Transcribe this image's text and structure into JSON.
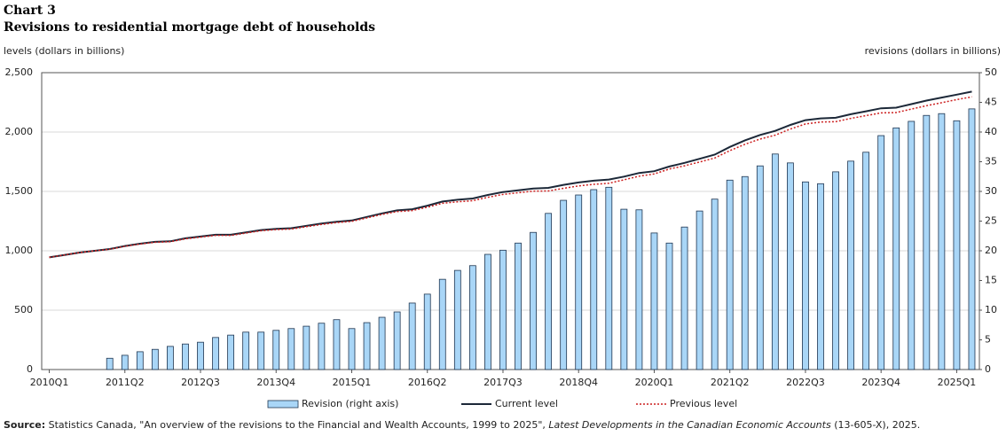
{
  "chart_data": {
    "type": "bar-line",
    "chart_label": "Chart 3",
    "title": "Revisions to residential mortgage debt of households",
    "ylabel": "levels (dollars in billions)",
    "y2label": "revisions (dollars in billions)",
    "categories": [
      "2010Q1",
      null,
      null,
      null,
      null,
      "2011Q2",
      null,
      null,
      null,
      null,
      "2012Q3",
      null,
      null,
      null,
      null,
      "2013Q4",
      null,
      null,
      null,
      null,
      "2015Q1",
      null,
      null,
      null,
      null,
      "2016Q2",
      null,
      null,
      null,
      null,
      "2017Q3",
      null,
      null,
      null,
      null,
      "2018Q4",
      null,
      null,
      null,
      null,
      "2020Q1",
      null,
      null,
      null,
      null,
      "2021Q2",
      null,
      null,
      null,
      null,
      "2022Q3",
      null,
      null,
      null,
      null,
      "2023Q4",
      null,
      null,
      null,
      null,
      "2025Q1",
      null
    ],
    "ylim": [
      0,
      2500
    ],
    "yticks": [
      0,
      500,
      {
        "value": 1000,
        "label": "1,000"
      },
      {
        "value": 1500,
        "label": "1,500"
      },
      {
        "value": 2000,
        "label": "2,000"
      },
      {
        "value": 2500,
        "label": "2,500"
      }
    ],
    "y2lim": [
      0,
      50
    ],
    "y2ticks": [
      0,
      5,
      10,
      15,
      20,
      25,
      30,
      35,
      40,
      45,
      50
    ],
    "grid": true,
    "series": [
      {
        "name": "Revision (right axis)",
        "type": "bar",
        "axis": "y2",
        "color": "#a9d6f7",
        "edge": "#1f3550",
        "values": [
          null,
          null,
          null,
          null,
          1.9,
          2.4,
          3.0,
          3.4,
          3.9,
          4.3,
          4.6,
          5.4,
          5.8,
          6.3,
          6.3,
          6.6,
          6.9,
          7.3,
          7.8,
          8.4,
          6.9,
          7.9,
          8.8,
          9.7,
          11.2,
          12.7,
          15.2,
          16.7,
          17.5,
          19.4,
          20.1,
          21.3,
          23.1,
          26.3,
          28.5,
          29.4,
          30.3,
          30.7,
          27.0,
          26.9,
          23.0,
          21.3,
          24.0,
          26.7,
          28.7,
          31.9,
          32.5,
          34.3,
          36.3,
          34.8,
          31.6,
          31.3,
          33.3,
          35.1,
          36.6,
          39.4,
          40.7,
          41.8,
          42.8,
          43.1,
          41.9,
          43.9
        ]
      },
      {
        "name": "Current level",
        "type": "line",
        "color": "#1c2838",
        "dashed": false,
        "values": [
          945,
          965,
          985,
          1000,
          1015,
          1040,
          1060,
          1075,
          1080,
          1105,
          1120,
          1135,
          1135,
          1155,
          1175,
          1185,
          1190,
          1210,
          1230,
          1245,
          1255,
          1285,
          1315,
          1340,
          1350,
          1380,
          1415,
          1430,
          1440,
          1470,
          1495,
          1510,
          1525,
          1530,
          1555,
          1575,
          1590,
          1600,
          1625,
          1655,
          1670,
          1710,
          1740,
          1775,
          1810,
          1875,
          1930,
          1975,
          2010,
          2060,
          2100,
          2115,
          2120,
          2150,
          2175,
          2200,
          2205,
          2235,
          2265,
          2290,
          2315,
          2340
        ]
      },
      {
        "name": "Previous level",
        "type": "line",
        "color": "#cc1f1f",
        "dashed": true,
        "values": [
          945,
          965,
          985,
          1000,
          1013,
          1038,
          1057,
          1072,
          1076,
          1101,
          1115,
          1130,
          1129,
          1149,
          1169,
          1178,
          1183,
          1203,
          1222,
          1237,
          1248,
          1277,
          1306,
          1330,
          1339,
          1367,
          1400,
          1413,
          1422,
          1451,
          1475,
          1489,
          1502,
          1504,
          1526,
          1546,
          1560,
          1569,
          1598,
          1628,
          1647,
          1689,
          1716,
          1748,
          1781,
          1843,
          1897,
          1941,
          1974,
          2025,
          2068,
          2084,
          2087,
          2115,
          2138,
          2161,
          2164,
          2193,
          2222,
          2247,
          2273,
          2296
        ]
      }
    ],
    "source": {
      "label": "Source:",
      "text": " Statistics Canada, \"An overview of the revisions to the Financial and Wealth Accounts, 1999 to 2025\", ",
      "italic": "Latest Developments in the Canadian Economic Accounts",
      "tail": " (13-605-X), 2025."
    }
  }
}
